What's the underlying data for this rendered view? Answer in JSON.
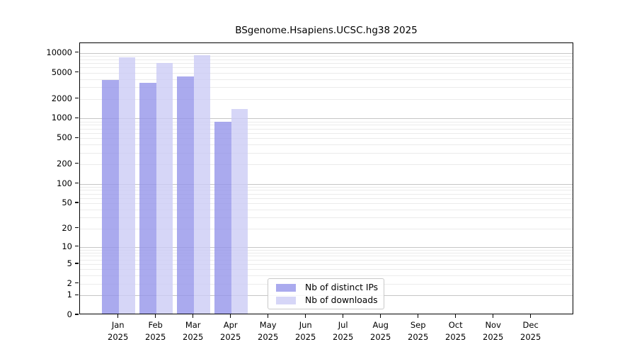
{
  "chart": {
    "title": "BSgenome.Hsapiens.UCSC.hg38 2025",
    "legend": [
      {
        "label": "Nb of distinct IPs",
        "color": "#aaaaee"
      },
      {
        "label": "Nb of downloads",
        "color": "#d6d6f7"
      }
    ]
  },
  "chart_data": {
    "type": "bar",
    "title": "BSgenome.Hsapiens.UCSC.hg38 2025",
    "categories": [
      "Jan 2025",
      "Feb 2025",
      "Mar 2025",
      "Apr 2025",
      "May 2025",
      "Jun 2025",
      "Jul 2025",
      "Aug 2025",
      "Sep 2025",
      "Oct 2025",
      "Nov 2025",
      "Dec 2025"
    ],
    "series": [
      {
        "name": "Nb of distinct IPs",
        "color": "#aaaaee",
        "values": [
          3700,
          3350,
          4150,
          840,
          null,
          null,
          null,
          null,
          null,
          null,
          null,
          null
        ]
      },
      {
        "name": "Nb of downloads",
        "color": "#d6d6f7",
        "values": [
          8100,
          6700,
          8850,
          1330,
          null,
          null,
          null,
          null,
          null,
          null,
          null,
          null
        ]
      }
    ],
    "yscale": "log10(1+x)",
    "yticks": [
      0,
      1,
      2,
      5,
      10,
      20,
      50,
      100,
      200,
      500,
      1000,
      2000,
      5000,
      10000
    ],
    "ylim": [
      0,
      13000
    ],
    "xlabel": "",
    "ylabel": "",
    "grid": "horizontal major (powers of 10) + minor (2-9 per decade)",
    "legend_position": "inside bottom-center"
  }
}
